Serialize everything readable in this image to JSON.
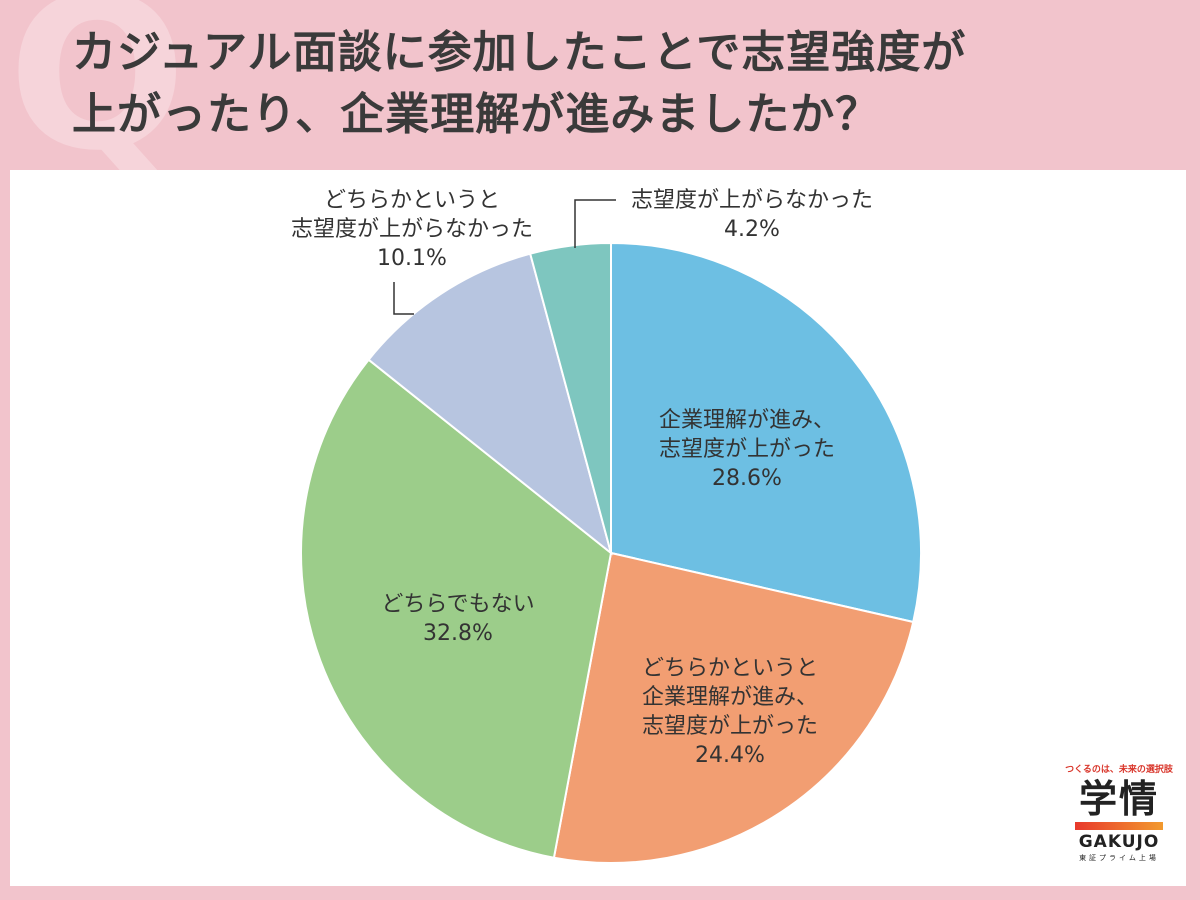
{
  "title": {
    "line1": "カジュアル面談に参加したことで志望強度が",
    "line2": "上がったり、企業理解が進みましたか？"
  },
  "chart_data": {
    "type": "pie",
    "start": "12 o'clock, clockwise",
    "slices": [
      {
        "label_lines": [
          "企業理解が進み、",
          "志望度が上がった"
        ],
        "value_text": "28.6%",
        "value": 28.6,
        "color": "#6dbfe3"
      },
      {
        "label_lines": [
          "どちらかというと",
          "企業理解が進み、",
          "志望度が上がった"
        ],
        "value_text": "24.4%",
        "value": 24.4,
        "color": "#f29e72"
      },
      {
        "label_lines": [
          "どちらでもない"
        ],
        "value_text": "32.8%",
        "value": 32.8,
        "color": "#9ccd8a"
      },
      {
        "label_lines": [
          "どちらかというと",
          "志望度が上がらなかった"
        ],
        "value_text": "10.1%",
        "value": 10.1,
        "color": "#b7c5e0"
      },
      {
        "label_lines": [
          "志望度が上がらなかった"
        ],
        "value_text": "4.2%",
        "value": 4.2,
        "color": "#7ec6bf"
      }
    ]
  },
  "logo": {
    "tagline": "つくるのは、未来の選択肢",
    "mark": "学情",
    "latin": "GAKUJO",
    "sub": "東証プライム上場",
    "bar_color": "#e8392c"
  }
}
